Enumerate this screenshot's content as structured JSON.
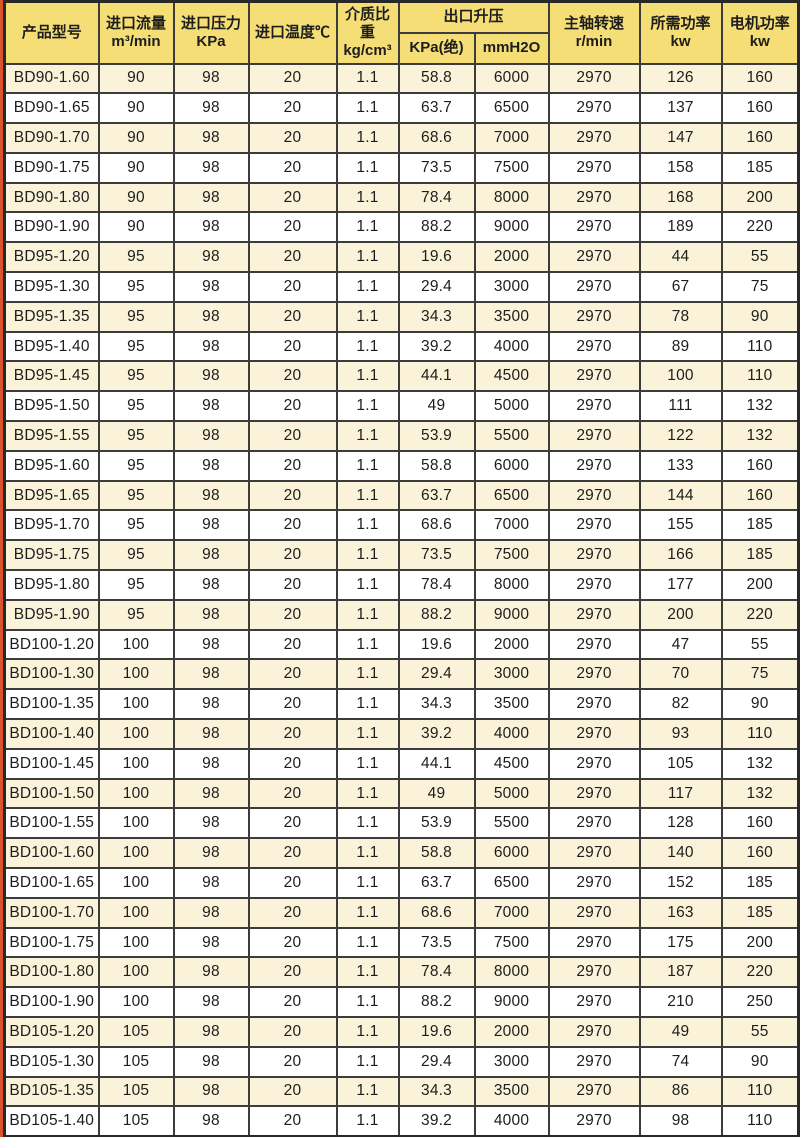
{
  "page": {
    "colors": {
      "header_bg": "#f6de76",
      "row_alt_bg": "#faf3d9",
      "row_bg": "#ffffff",
      "border": "#3c3c3c",
      "edge_strip": "#d9542c",
      "text": "#1d1d1d"
    }
  },
  "table": {
    "headers": {
      "model": "产品型号",
      "inlet_flow": "进口流量\nm³/min",
      "inlet_pressure": "进口压力\nKPa",
      "inlet_temp": "进口温度℃",
      "medium_ratio": "介质比\n重kg/cm³",
      "outlet_rise_group": "出口升压",
      "outlet_kpa": "KPa(绝)",
      "outlet_mmh2o": "mmH2O",
      "shaft_speed": "主轴转速\nr/min",
      "required_power": "所需功率\nkw",
      "motor_power": "电机功率\nkw"
    },
    "cell_names": [
      "model",
      "inlet-flow",
      "inlet-pressure",
      "inlet-temp",
      "medium-ratio",
      "outlet-kpa",
      "outlet-mmh2o",
      "shaft-speed",
      "required-power",
      "motor-power"
    ],
    "rows": [
      [
        "BD90-1.60",
        "90",
        "98",
        "20",
        "1.1",
        "58.8",
        "6000",
        "2970",
        "126",
        "160"
      ],
      [
        "BD90-1.65",
        "90",
        "98",
        "20",
        "1.1",
        "63.7",
        "6500",
        "2970",
        "137",
        "160"
      ],
      [
        "BD90-1.70",
        "90",
        "98",
        "20",
        "1.1",
        "68.6",
        "7000",
        "2970",
        "147",
        "160"
      ],
      [
        "BD90-1.75",
        "90",
        "98",
        "20",
        "1.1",
        "73.5",
        "7500",
        "2970",
        "158",
        "185"
      ],
      [
        "BD90-1.80",
        "90",
        "98",
        "20",
        "1.1",
        "78.4",
        "8000",
        "2970",
        "168",
        "200"
      ],
      [
        "BD90-1.90",
        "90",
        "98",
        "20",
        "1.1",
        "88.2",
        "9000",
        "2970",
        "189",
        "220"
      ],
      [
        "BD95-1.20",
        "95",
        "98",
        "20",
        "1.1",
        "19.6",
        "2000",
        "2970",
        "44",
        "55"
      ],
      [
        "BD95-1.30",
        "95",
        "98",
        "20",
        "1.1",
        "29.4",
        "3000",
        "2970",
        "67",
        "75"
      ],
      [
        "BD95-1.35",
        "95",
        "98",
        "20",
        "1.1",
        "34.3",
        "3500",
        "2970",
        "78",
        "90"
      ],
      [
        "BD95-1.40",
        "95",
        "98",
        "20",
        "1.1",
        "39.2",
        "4000",
        "2970",
        "89",
        "110"
      ],
      [
        "BD95-1.45",
        "95",
        "98",
        "20",
        "1.1",
        "44.1",
        "4500",
        "2970",
        "100",
        "110"
      ],
      [
        "BD95-1.50",
        "95",
        "98",
        "20",
        "1.1",
        "49",
        "5000",
        "2970",
        "111",
        "132"
      ],
      [
        "BD95-1.55",
        "95",
        "98",
        "20",
        "1.1",
        "53.9",
        "5500",
        "2970",
        "122",
        "132"
      ],
      [
        "BD95-1.60",
        "95",
        "98",
        "20",
        "1.1",
        "58.8",
        "6000",
        "2970",
        "133",
        "160"
      ],
      [
        "BD95-1.65",
        "95",
        "98",
        "20",
        "1.1",
        "63.7",
        "6500",
        "2970",
        "144",
        "160"
      ],
      [
        "BD95-1.70",
        "95",
        "98",
        "20",
        "1.1",
        "68.6",
        "7000",
        "2970",
        "155",
        "185"
      ],
      [
        "BD95-1.75",
        "95",
        "98",
        "20",
        "1.1",
        "73.5",
        "7500",
        "2970",
        "166",
        "185"
      ],
      [
        "BD95-1.80",
        "95",
        "98",
        "20",
        "1.1",
        "78.4",
        "8000",
        "2970",
        "177",
        "200"
      ],
      [
        "BD95-1.90",
        "95",
        "98",
        "20",
        "1.1",
        "88.2",
        "9000",
        "2970",
        "200",
        "220"
      ],
      [
        "BD100-1.20",
        "100",
        "98",
        "20",
        "1.1",
        "19.6",
        "2000",
        "2970",
        "47",
        "55"
      ],
      [
        "BD100-1.30",
        "100",
        "98",
        "20",
        "1.1",
        "29.4",
        "3000",
        "2970",
        "70",
        "75"
      ],
      [
        "BD100-1.35",
        "100",
        "98",
        "20",
        "1.1",
        "34.3",
        "3500",
        "2970",
        "82",
        "90"
      ],
      [
        "BD100-1.40",
        "100",
        "98",
        "20",
        "1.1",
        "39.2",
        "4000",
        "2970",
        "93",
        "110"
      ],
      [
        "BD100-1.45",
        "100",
        "98",
        "20",
        "1.1",
        "44.1",
        "4500",
        "2970",
        "105",
        "132"
      ],
      [
        "BD100-1.50",
        "100",
        "98",
        "20",
        "1.1",
        "49",
        "5000",
        "2970",
        "117",
        "132"
      ],
      [
        "BD100-1.55",
        "100",
        "98",
        "20",
        "1.1",
        "53.9",
        "5500",
        "2970",
        "128",
        "160"
      ],
      [
        "BD100-1.60",
        "100",
        "98",
        "20",
        "1.1",
        "58.8",
        "6000",
        "2970",
        "140",
        "160"
      ],
      [
        "BD100-1.65",
        "100",
        "98",
        "20",
        "1.1",
        "63.7",
        "6500",
        "2970",
        "152",
        "185"
      ],
      [
        "BD100-1.70",
        "100",
        "98",
        "20",
        "1.1",
        "68.6",
        "7000",
        "2970",
        "163",
        "185"
      ],
      [
        "BD100-1.75",
        "100",
        "98",
        "20",
        "1.1",
        "73.5",
        "7500",
        "2970",
        "175",
        "200"
      ],
      [
        "BD100-1.80",
        "100",
        "98",
        "20",
        "1.1",
        "78.4",
        "8000",
        "2970",
        "187",
        "220"
      ],
      [
        "BD100-1.90",
        "100",
        "98",
        "20",
        "1.1",
        "88.2",
        "9000",
        "2970",
        "210",
        "250"
      ],
      [
        "BD105-1.20",
        "105",
        "98",
        "20",
        "1.1",
        "19.6",
        "2000",
        "2970",
        "49",
        "55"
      ],
      [
        "BD105-1.30",
        "105",
        "98",
        "20",
        "1.1",
        "29.4",
        "3000",
        "2970",
        "74",
        "90"
      ],
      [
        "BD105-1.35",
        "105",
        "98",
        "20",
        "1.1",
        "34.3",
        "3500",
        "2970",
        "86",
        "110"
      ],
      [
        "BD105-1.40",
        "105",
        "98",
        "20",
        "1.1",
        "39.2",
        "4000",
        "2970",
        "98",
        "110"
      ]
    ]
  }
}
